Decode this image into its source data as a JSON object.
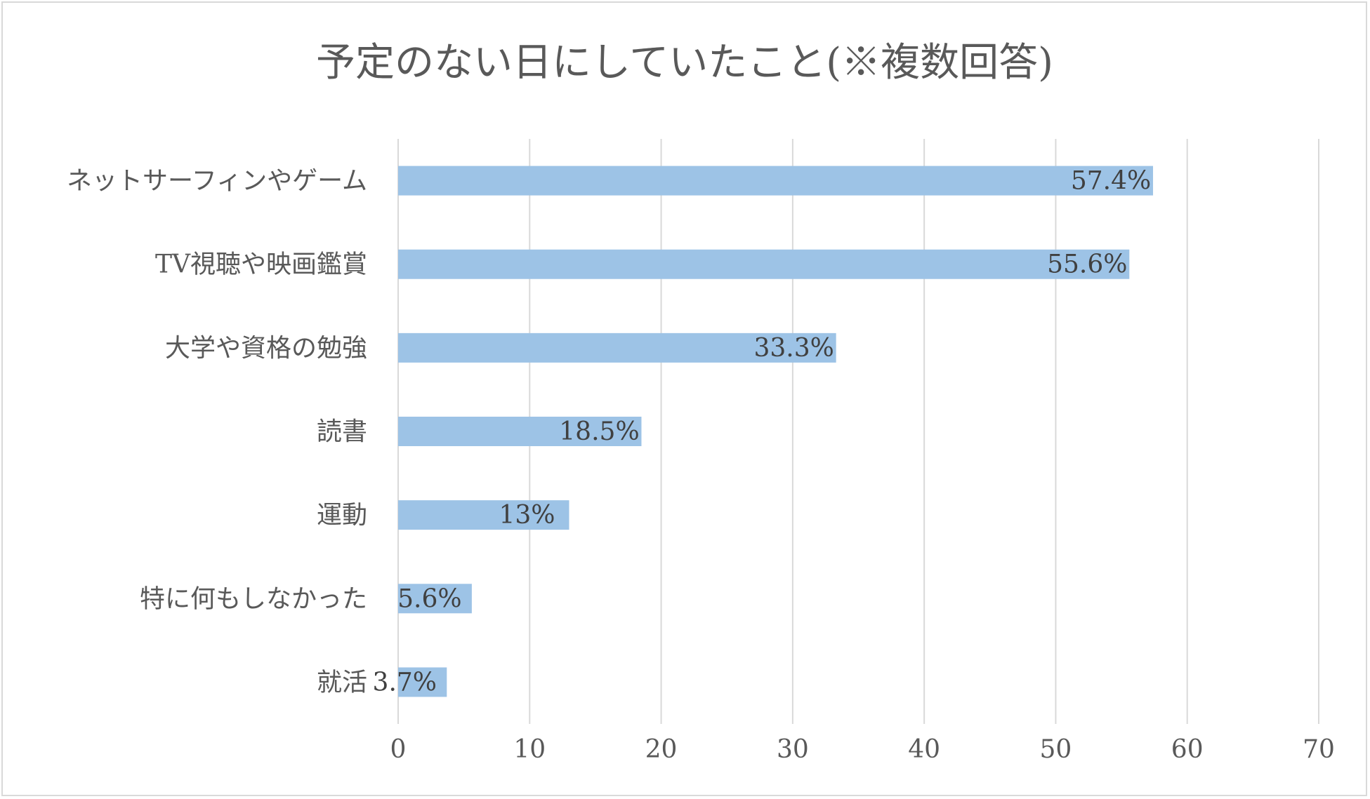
{
  "chart_data": {
    "type": "bar",
    "orientation": "horizontal",
    "title": "予定のない日にしていたこと(※複数回答)",
    "categories": [
      "ネットサーフィンやゲーム",
      "TV視聴や映画鑑賞",
      "大学や資格の勉強",
      "読書",
      "運動",
      "特に何もしなかった",
      "就活"
    ],
    "values": [
      57.4,
      55.6,
      33.3,
      18.5,
      13,
      5.6,
      3.7
    ],
    "data_labels": [
      "57.4%",
      "55.6%",
      "33.3%",
      "18.5%",
      "13%",
      "5.6%",
      "3.7%"
    ],
    "xlim": [
      0,
      70
    ],
    "x_ticks": [
      0,
      10,
      20,
      30,
      40,
      50,
      60,
      70
    ],
    "grid": true,
    "legend": "none",
    "bar_color": "#9dc3e6",
    "grid_color": "#d9d9d9"
  }
}
